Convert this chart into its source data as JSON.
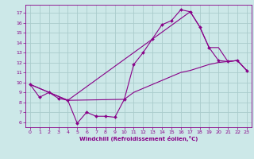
{
  "xlabel": "Windchill (Refroidissement éolien,°C)",
  "bg_color": "#cce8e8",
  "grid_color": "#aacccc",
  "line_color": "#880088",
  "xlim": [
    -0.5,
    23.5
  ],
  "ylim": [
    5.5,
    17.8
  ],
  "xticks": [
    0,
    1,
    2,
    3,
    4,
    5,
    6,
    7,
    8,
    9,
    10,
    11,
    12,
    13,
    14,
    15,
    16,
    17,
    18,
    19,
    20,
    21,
    22,
    23
  ],
  "yticks": [
    6,
    7,
    8,
    9,
    10,
    11,
    12,
    13,
    14,
    15,
    16,
    17
  ],
  "line_jagged_x": [
    0,
    1,
    2,
    3,
    4,
    5,
    6,
    7,
    8,
    9,
    10,
    11,
    12,
    13,
    14,
    15,
    16,
    17,
    18,
    19,
    20,
    21,
    22,
    23
  ],
  "line_jagged_y": [
    9.8,
    8.5,
    9.0,
    8.4,
    8.2,
    5.9,
    7.0,
    6.6,
    6.6,
    6.5,
    8.3,
    11.8,
    13.0,
    14.4,
    15.8,
    16.2,
    17.3,
    17.1,
    15.6,
    13.5,
    12.2,
    12.1,
    12.2,
    11.2
  ],
  "line_upper_x": [
    0,
    4,
    17,
    18,
    19,
    20,
    21,
    22,
    23
  ],
  "line_upper_y": [
    9.8,
    8.2,
    17.1,
    15.6,
    13.5,
    13.5,
    12.1,
    12.2,
    11.2
  ],
  "line_lower_x": [
    0,
    4,
    10,
    11,
    12,
    13,
    14,
    15,
    16,
    17,
    18,
    19,
    20,
    21,
    22,
    23
  ],
  "line_lower_y": [
    9.8,
    8.2,
    8.3,
    9.0,
    9.4,
    9.8,
    10.2,
    10.6,
    11.0,
    11.2,
    11.5,
    11.8,
    12.0,
    12.1,
    12.2,
    11.2
  ]
}
